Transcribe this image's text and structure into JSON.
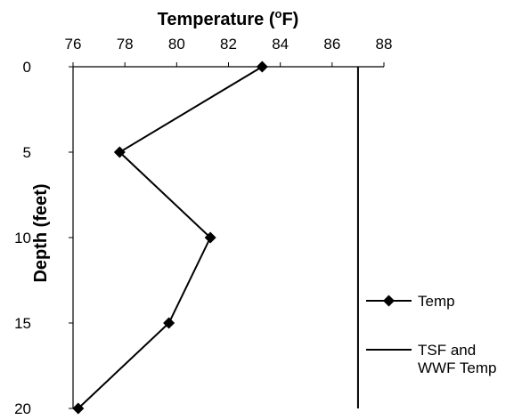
{
  "chart_data": {
    "type": "line",
    "title": "Temperature (°F)",
    "title_main": "Temperature (",
    "title_sup": "o",
    "title_end": "F)",
    "xlabel": "Temperature (°F)",
    "ylabel": "Depth (feet)",
    "x_axis_position": "top",
    "y_axis_inverted": true,
    "xlim": [
      76,
      88
    ],
    "ylim": [
      0,
      20
    ],
    "x_ticks": [
      76,
      78,
      80,
      82,
      84,
      86,
      88
    ],
    "y_ticks": [
      0,
      5,
      10,
      15,
      20
    ],
    "grid": false,
    "legend_position": "right",
    "series": [
      {
        "name": "Temp",
        "marker": "diamond",
        "points": [
          {
            "temp": 83.3,
            "depth": 0
          },
          {
            "temp": 77.8,
            "depth": 5
          },
          {
            "temp": 81.3,
            "depth": 10
          },
          {
            "temp": 79.7,
            "depth": 15
          },
          {
            "temp": 76.2,
            "depth": 20
          }
        ]
      },
      {
        "name": "TSF and WWF Temp",
        "name_lines": [
          "TSF and",
          "WWF Temp"
        ],
        "marker": "none",
        "points": [
          {
            "temp": 87,
            "depth": 0
          },
          {
            "temp": 87,
            "depth": 20
          }
        ]
      }
    ]
  }
}
